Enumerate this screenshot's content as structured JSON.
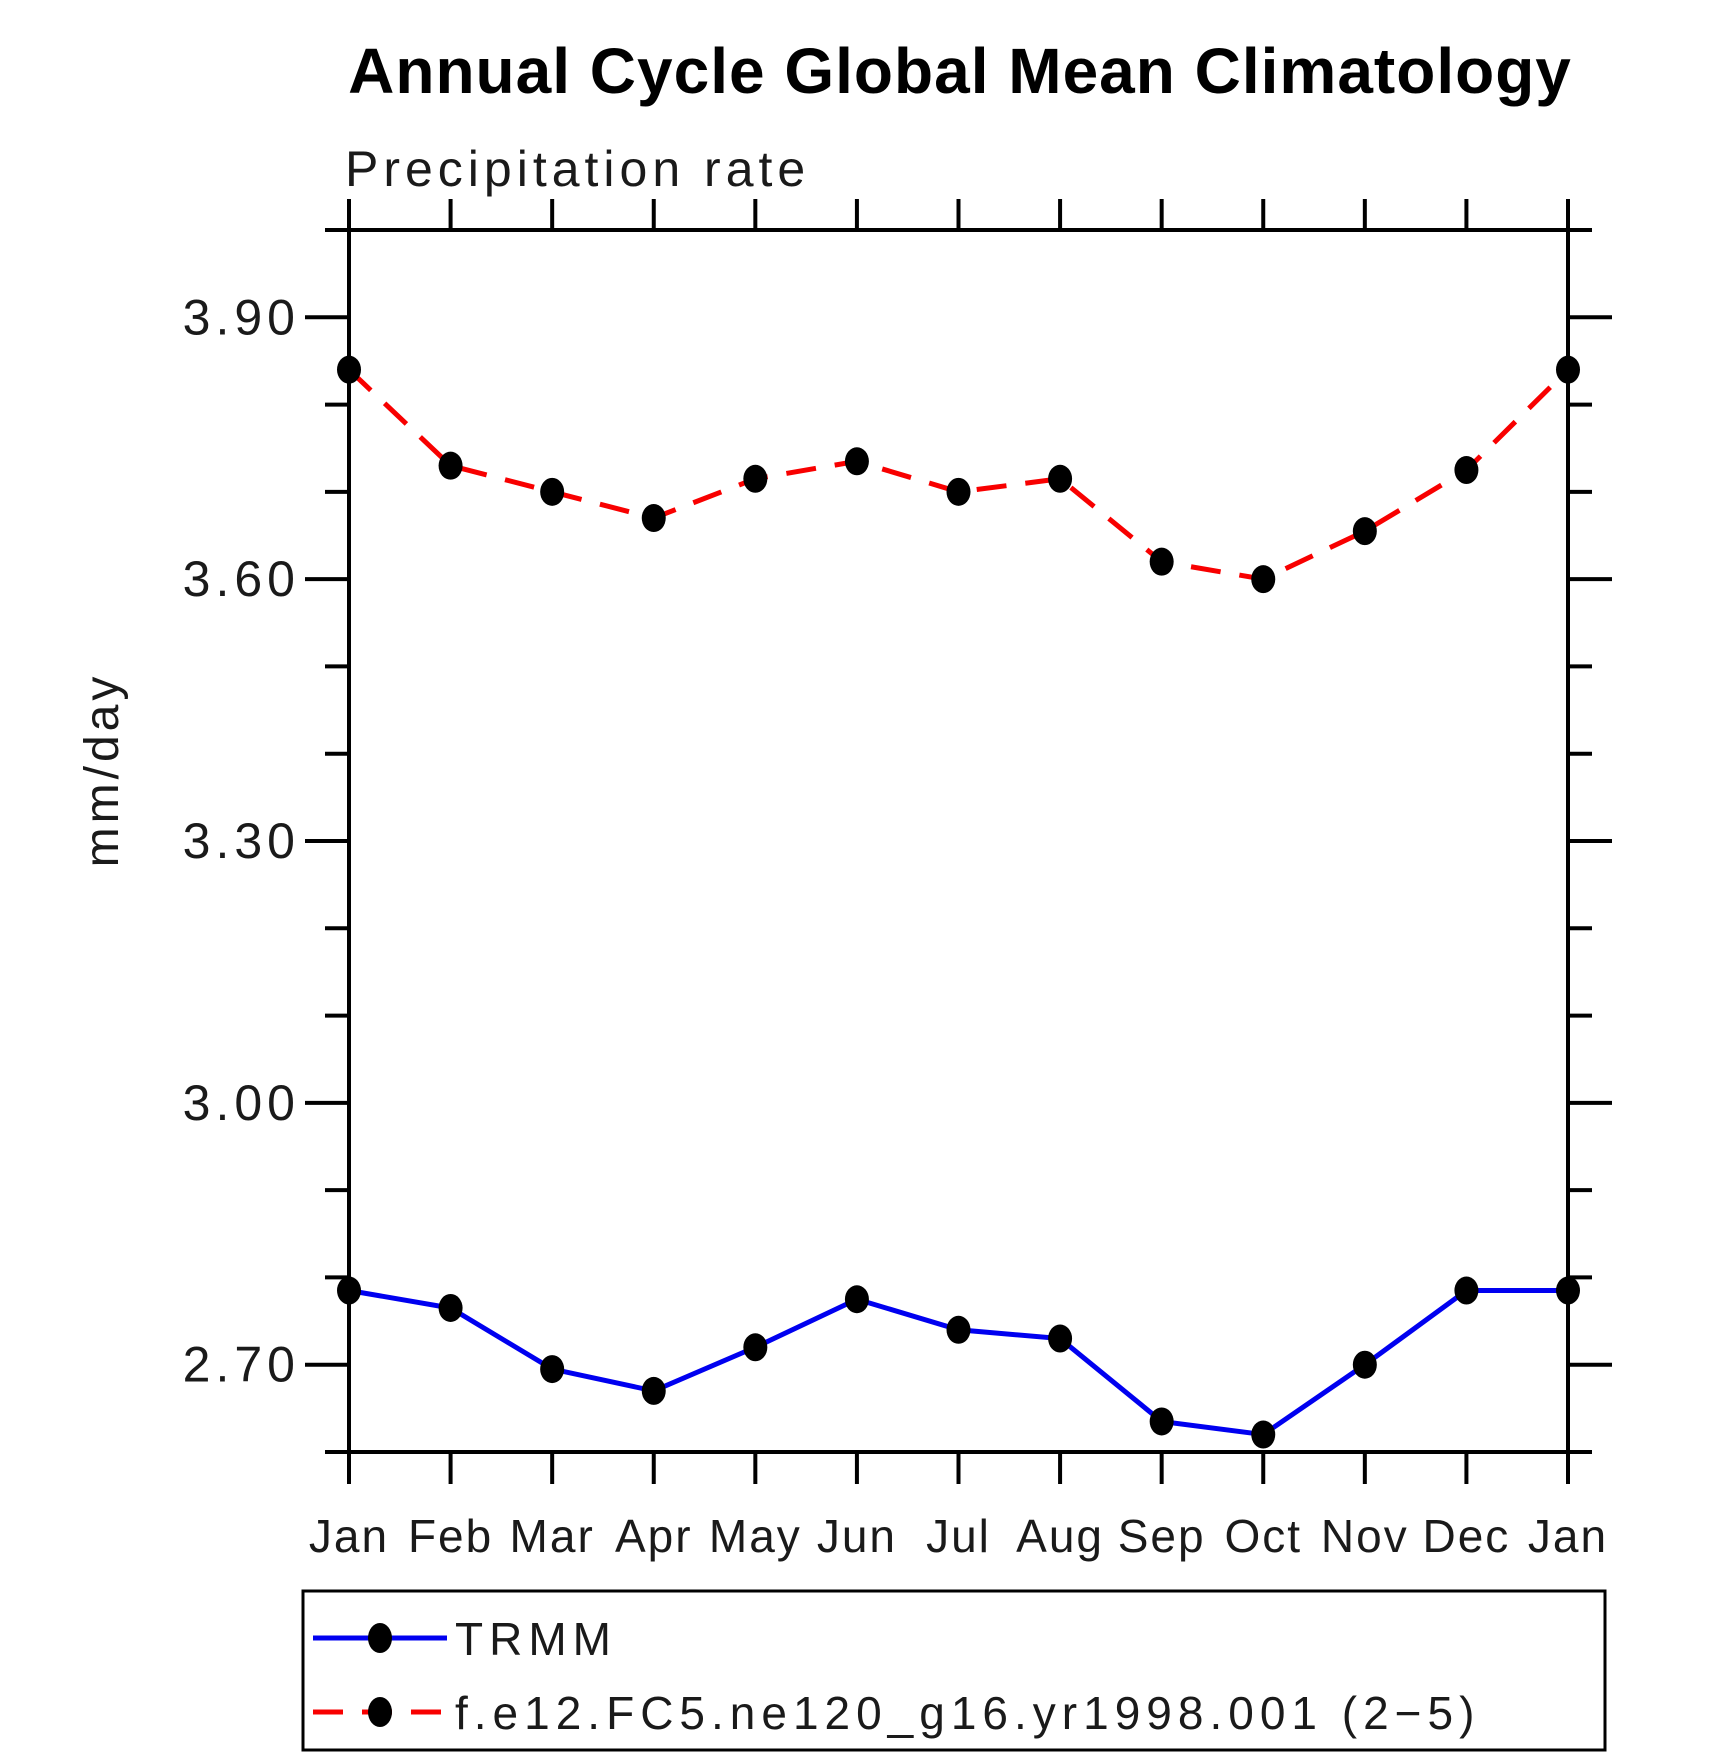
{
  "title": "Annual Cycle Global Mean Climatology",
  "subtitle": "Precipitation rate",
  "chart_data": {
    "type": "line",
    "categories": [
      "Jan",
      "Feb",
      "Mar",
      "Apr",
      "May",
      "Jun",
      "Jul",
      "Aug",
      "Sep",
      "Oct",
      "Nov",
      "Dec",
      "Jan"
    ],
    "ylabel": "mm/day",
    "ylim": [
      2.6,
      4.0
    ],
    "ytick_major": [
      2.7,
      3.0,
      3.3,
      3.6,
      3.9
    ],
    "ytick_minor_step": 0.1,
    "grid": false,
    "legend_position": "below-plot-box",
    "series": [
      {
        "name": "TRMM",
        "color": "#0000f0",
        "line_style": "solid",
        "marker": "filled-circle",
        "marker_color": "#000000",
        "values": [
          2.785,
          2.765,
          2.695,
          2.67,
          2.72,
          2.775,
          2.74,
          2.73,
          2.635,
          2.62,
          2.7,
          2.785,
          2.785
        ]
      },
      {
        "name": "f.e12.FC5.ne120_g16.yr1998.001 (2−5)",
        "color": "#f80000",
        "line_style": "dashed",
        "marker": "filled-circle",
        "marker_color": "#000000",
        "values": [
          3.84,
          3.73,
          3.7,
          3.67,
          3.715,
          3.735,
          3.7,
          3.715,
          3.62,
          3.6,
          3.655,
          3.725,
          3.84
        ]
      }
    ]
  }
}
